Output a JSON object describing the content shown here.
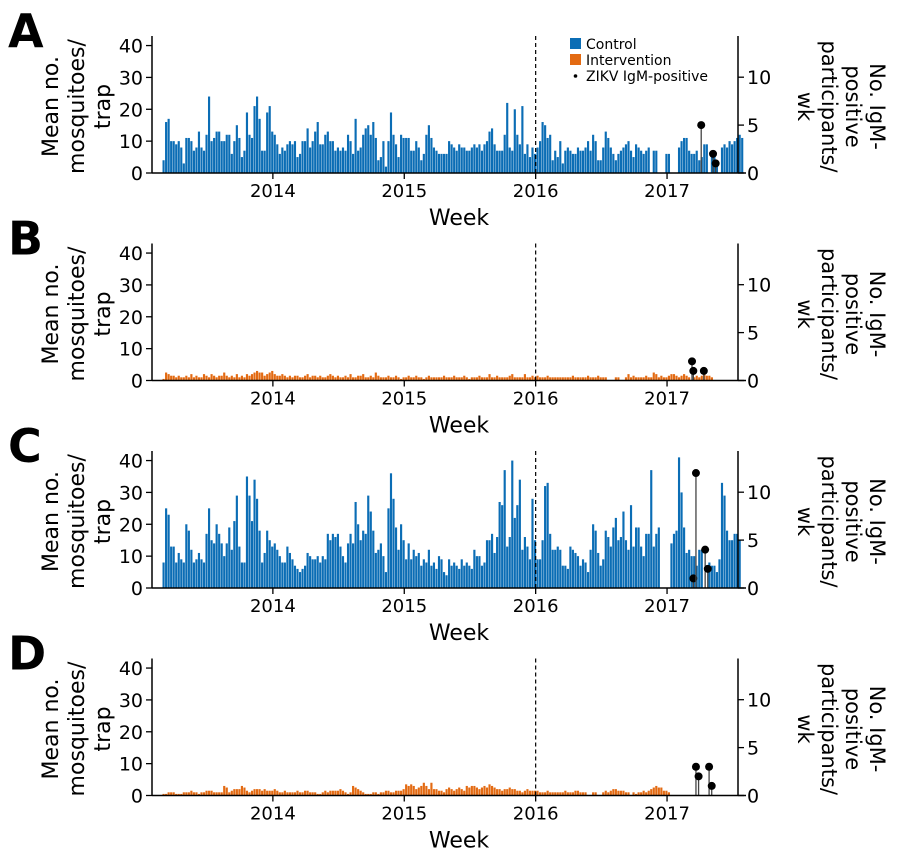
{
  "chart_data": [
    {
      "panel_label": "A",
      "type": "bar",
      "bar_series_name": "Control",
      "bar_color": "#0b6db5",
      "ylabel_left": [
        "Mean no.",
        "mosquitoes/",
        "trap"
      ],
      "ylabel_right": [
        "No. IgM-",
        "positive",
        "participants/",
        "wk"
      ],
      "xlabel": "Week",
      "x_ticks": [
        "2014",
        "2015",
        "2016",
        "2017"
      ],
      "y_ticks_left": [
        "0",
        "10",
        "20",
        "30",
        "40"
      ],
      "y_ticks_right": [
        "0",
        "5",
        "10"
      ],
      "ylim_left": [
        0,
        43
      ],
      "ylim_right": [
        0,
        14.3
      ],
      "xlim_years": [
        2013.08,
        2017.54
      ],
      "x_first_week": "2013-03",
      "x_interval": "1 week",
      "reference_line_x": 2016,
      "legend": {
        "position": "top-right",
        "entries": [
          {
            "label": "Control",
            "color": "#0b6db5",
            "marker": "square"
          },
          {
            "label": "Intervention",
            "color": "#e36a12",
            "marker": "square"
          },
          {
            "label": "ZIKV IgM-positive",
            "color": "#000000",
            "marker": "dot"
          }
        ]
      },
      "values": [
        4,
        16,
        17,
        10,
        10,
        9,
        10,
        8,
        3,
        11,
        11,
        10,
        7,
        8,
        13,
        8,
        7,
        12,
        24,
        10,
        11,
        13,
        13,
        10,
        10,
        12,
        12,
        6,
        10,
        15,
        11,
        5,
        7,
        19,
        12,
        11,
        21,
        24,
        17,
        7,
        7,
        19,
        21,
        13,
        12,
        9,
        6,
        8,
        7,
        9,
        10,
        9,
        10,
        5,
        6,
        10,
        10,
        14,
        8,
        10,
        13,
        16,
        9,
        9,
        12,
        13,
        10,
        10,
        7,
        8,
        7,
        8,
        7,
        12,
        10,
        6,
        17,
        7,
        8,
        12,
        14,
        15,
        12,
        16,
        11,
        4,
        5,
        10,
        2,
        10,
        19,
        12,
        9,
        5,
        12,
        11,
        11,
        11,
        7,
        7,
        10,
        8,
        4,
        6,
        12,
        15,
        11,
        8,
        7,
        6,
        6,
        6,
        6,
        10,
        9,
        8,
        7,
        9,
        8,
        8,
        7,
        7,
        8,
        9,
        8,
        9,
        7,
        9,
        10,
        13,
        14,
        9,
        7,
        7,
        7,
        12,
        22,
        8,
        7,
        20,
        12,
        9,
        21,
        6,
        9,
        5,
        8,
        6,
        8,
        10,
        16,
        15,
        11,
        12,
        4,
        7,
        5,
        10,
        3,
        7,
        8,
        7,
        6,
        6,
        8,
        7,
        7,
        8,
        10,
        7,
        12,
        10,
        4,
        4,
        8,
        13,
        11,
        8,
        6,
        4,
        6,
        7,
        8,
        9,
        10,
        7,
        5,
        9,
        8,
        7,
        6,
        7,
        8,
        null,
        7,
        7,
        null,
        null,
        null,
        6,
        6,
        null,
        null,
        null,
        8,
        10,
        11,
        11,
        7,
        6,
        6,
        7,
        4,
        5,
        9,
        9,
        null,
        6,
        7,
        4,
        null,
        8,
        9,
        8,
        10,
        9,
        10,
        11,
        12,
        11
      ],
      "igm_positive": [
        {
          "x": 2017.26,
          "value": 5
        },
        {
          "x": 2017.35,
          "value": 2
        },
        {
          "x": 2017.37,
          "value": 1
        }
      ]
    },
    {
      "panel_label": "B",
      "type": "bar",
      "bar_series_name": "Intervention",
      "bar_color": "#e36a12",
      "ylabel_left": [
        "Mean no.",
        "mosquitoes/",
        "trap"
      ],
      "ylabel_right": [
        "No. IgM-",
        "positive",
        "participants/",
        "wk"
      ],
      "xlabel": "Week",
      "x_ticks": [
        "2014",
        "2015",
        "2016",
        "2017"
      ],
      "y_ticks_left": [
        "0",
        "10",
        "20",
        "30",
        "40"
      ],
      "y_ticks_right": [
        "0",
        "5",
        "10"
      ],
      "ylim_left": [
        0,
        43
      ],
      "ylim_right": [
        0,
        14.3
      ],
      "xlim_years": [
        2013.08,
        2017.54
      ],
      "x_first_week": "2013-03",
      "x_interval": "1 week",
      "reference_line_x": 2016,
      "values": [
        0.5,
        2.5,
        2,
        1.5,
        1.5,
        1,
        1.5,
        1,
        1,
        1.5,
        1,
        2,
        1,
        1.5,
        1,
        1,
        2,
        1.5,
        1,
        2,
        1.5,
        1,
        1.5,
        1.5,
        2.5,
        1.5,
        1,
        1.5,
        1,
        2,
        1,
        1.5,
        1,
        2,
        1.5,
        2,
        2.5,
        3,
        2.5,
        2.5,
        1.5,
        2,
        2.5,
        3,
        2,
        1.5,
        1.5,
        2,
        1.5,
        1,
        1.5,
        1,
        1.5,
        1.5,
        1,
        1,
        1.5,
        2,
        1,
        1.5,
        1.5,
        1,
        1.5,
        1,
        1,
        1.5,
        2,
        1.5,
        1,
        1.5,
        1,
        1,
        1.5,
        1,
        2,
        1,
        1,
        1.5,
        1.5,
        2,
        1,
        1,
        1.5,
        1,
        2.5,
        1.5,
        1,
        1,
        1,
        1.5,
        1,
        1,
        1.5,
        1,
        0.5,
        1,
        1,
        1.5,
        1,
        1,
        1.5,
        1,
        1,
        0.5,
        1,
        1.5,
        1,
        1,
        1,
        1,
        1,
        1.5,
        1,
        1,
        1,
        1.5,
        1,
        1,
        1,
        1.5,
        1,
        0.5,
        1,
        1,
        1,
        1.5,
        1,
        1,
        1,
        2,
        1,
        1,
        1.5,
        1,
        1,
        1,
        1,
        1.5,
        2,
        1,
        1,
        1,
        1,
        2,
        1,
        1,
        1.5,
        1,
        1.5,
        1,
        1,
        1,
        1.5,
        1,
        1,
        1,
        1,
        1,
        1,
        1,
        1,
        1,
        1.5,
        1,
        1,
        1,
        1,
        1,
        1.5,
        1,
        1,
        1,
        1.5,
        1,
        1,
        1,
        null,
        null,
        null,
        1,
        1,
        null,
        null,
        1,
        2,
        1,
        1.5,
        1,
        1,
        1,
        1,
        1.5,
        1,
        1,
        2.5,
        2,
        1,
        1.5,
        1,
        1,
        1.5,
        2,
        2,
        1.5,
        1,
        1.5,
        2,
        1.5,
        1,
        null,
        1,
        1.5,
        1,
        1.5,
        2,
        1.5,
        1.5,
        1
      ],
      "igm_positive": [
        {
          "x": 2017.19,
          "value": 2
        },
        {
          "x": 2017.2,
          "value": 1
        },
        {
          "x": 2017.28,
          "value": 1
        }
      ]
    },
    {
      "panel_label": "C",
      "type": "bar",
      "bar_series_name": "Control",
      "bar_color": "#0b6db5",
      "ylabel_left": [
        "Mean no.",
        "mosquitoes/",
        "trap"
      ],
      "ylabel_right": [
        "No. IgM-",
        "positive",
        "participants/",
        "wk"
      ],
      "xlabel": "Week",
      "x_ticks": [
        "2014",
        "2015",
        "2016",
        "2017"
      ],
      "y_ticks_left": [
        "0",
        "10",
        "20",
        "30",
        "40"
      ],
      "y_ticks_right": [
        "0",
        "5",
        "10"
      ],
      "ylim_left": [
        0,
        43
      ],
      "ylim_right": [
        0,
        14.3
      ],
      "xlim_years": [
        2013.08,
        2017.54
      ],
      "x_first_week": "2013-03",
      "x_interval": "1 week",
      "reference_line_x": 2016,
      "values": [
        8,
        25,
        23,
        13,
        13,
        8,
        11,
        9,
        8,
        20,
        18,
        12,
        8,
        9,
        11,
        9,
        8,
        17,
        25,
        15,
        14,
        20,
        17,
        14,
        10,
        14,
        19,
        12,
        21,
        29,
        13,
        8,
        8,
        35,
        29,
        21,
        34,
        28,
        18,
        8,
        11,
        18,
        15,
        13,
        14,
        12,
        10,
        8,
        8,
        13,
        11,
        9,
        7,
        6,
        5,
        6,
        7,
        11,
        10,
        9,
        9,
        10,
        8,
        10,
        9,
        17,
        15,
        17,
        16,
        17,
        13,
        10,
        8,
        14,
        17,
        14,
        27,
        20,
        15,
        18,
        17,
        29,
        24,
        18,
        11,
        12,
        14,
        10,
        5,
        25,
        36,
        28,
        19,
        12,
        20,
        15,
        9,
        14,
        9,
        12,
        10,
        11,
        7,
        9,
        8,
        12,
        7,
        8,
        6,
        10,
        9,
        5,
        4,
        9,
        7,
        8,
        7,
        6,
        9,
        7,
        8,
        7,
        6,
        12,
        10,
        10,
        7,
        8,
        15,
        15,
        17,
        11,
        16,
        27,
        26,
        37,
        13,
        16,
        40,
        22,
        26,
        34,
        12,
        16,
        13,
        9,
        28,
        15,
        9,
        9,
        15,
        32,
        33,
        17,
        12,
        12,
        13,
        12,
        7,
        7,
        6,
        13,
        12,
        11,
        10,
        7,
        9,
        8,
        5,
        12,
        20,
        18,
        11,
        7,
        9,
        18,
        16,
        13,
        19,
        22,
        15,
        16,
        24,
        15,
        12,
        26,
        13,
        19,
        19,
        13,
        10,
        17,
        17,
        37,
        13,
        17,
        19,
        null,
        null,
        null,
        null,
        14,
        17,
        18,
        41,
        30,
        19,
        11,
        12,
        10,
        10,
        7,
        12,
        12,
        null,
        null,
        8,
        7,
        7,
        5,
        9,
        33,
        29,
        18,
        15,
        15,
        17,
        17,
        15
      ],
      "igm_positive": [
        {
          "x": 2017.2,
          "value": 1
        },
        {
          "x": 2017.22,
          "value": 12
        },
        {
          "x": 2017.29,
          "value": 4
        },
        {
          "x": 2017.31,
          "value": 2
        }
      ]
    },
    {
      "panel_label": "D",
      "type": "bar",
      "bar_series_name": "Intervention",
      "bar_color": "#e36a12",
      "ylabel_left": [
        "Mean no.",
        "mosquitoes/",
        "trap"
      ],
      "ylabel_right": [
        "No. IgM-",
        "positive",
        "participants/",
        "wk"
      ],
      "xlabel": "Week",
      "x_ticks": [
        "2014",
        "2015",
        "2016",
        "2017"
      ],
      "y_ticks_left": [
        "0",
        "10",
        "20",
        "30",
        "40"
      ],
      "y_ticks_right": [
        "0",
        "5",
        "10"
      ],
      "ylim_left": [
        0,
        43
      ],
      "ylim_right": [
        0,
        14.3
      ],
      "xlim_years": [
        2013.08,
        2017.54
      ],
      "x_first_week": "2013-03",
      "x_interval": "1 week",
      "reference_line_x": 2016,
      "values": [
        0.5,
        0.5,
        1,
        1,
        1,
        0.5,
        0.5,
        0.5,
        1,
        1,
        1,
        1.5,
        1,
        1,
        0.5,
        1,
        1,
        1.5,
        1.5,
        1.5,
        1,
        1,
        1,
        1,
        3,
        2.5,
        1,
        1.5,
        2,
        2,
        2,
        3,
        2.5,
        1.5,
        1,
        1.5,
        2,
        2,
        2,
        1.5,
        2,
        1.5,
        1.5,
        1.5,
        2,
        1.5,
        1,
        1,
        1.5,
        1,
        1,
        1,
        1,
        1.5,
        1,
        1,
        1.5,
        1.5,
        1,
        1,
        1,
        0.5,
        0.5,
        1,
        1.5,
        1,
        1.5,
        1.5,
        1.5,
        1.5,
        2,
        1.5,
        1,
        0.5,
        1,
        3,
        2.5,
        2,
        1.5,
        1,
        0.5,
        0.5,
        0.5,
        1,
        1,
        0.5,
        1,
        1,
        1.5,
        1.5,
        1,
        1,
        1.5,
        1.5,
        1.5,
        2,
        3.5,
        3,
        3.5,
        3,
        2,
        2.5,
        3,
        4,
        3,
        2,
        4,
        2,
        2,
        1.5,
        1.5,
        1,
        2,
        2.5,
        2,
        1.5,
        2,
        2.5,
        2,
        1.5,
        3,
        2.5,
        3,
        3,
        2.5,
        2,
        2.5,
        3,
        2.5,
        3.5,
        3,
        2.5,
        2,
        2,
        1.5,
        2,
        2,
        2.5,
        2,
        2,
        1.5,
        1.5,
        1,
        1.5,
        2,
        1.5,
        1.5,
        1.5,
        1.5,
        1,
        1,
        1,
        1.5,
        1,
        1,
        1,
        1,
        1,
        1,
        1.5,
        1,
        1,
        1,
        1.5,
        1.5,
        1,
        1,
        1,
        null,
        null,
        1,
        1,
        null,
        null,
        1,
        1.5,
        1,
        1.5,
        2,
        2,
        1.5,
        1.5,
        1.5,
        1,
        1,
        null,
        1,
        0.5,
        1,
        1,
        1.5,
        1,
        1.5,
        2,
        2.5,
        3,
        2.5,
        2.5,
        1.5,
        1.5,
        1
      ],
      "igm_positive": [
        {
          "x": 2017.22,
          "value": 3
        },
        {
          "x": 2017.24,
          "value": 2
        },
        {
          "x": 2017.32,
          "value": 3
        },
        {
          "x": 2017.34,
          "value": 1
        }
      ]
    }
  ]
}
